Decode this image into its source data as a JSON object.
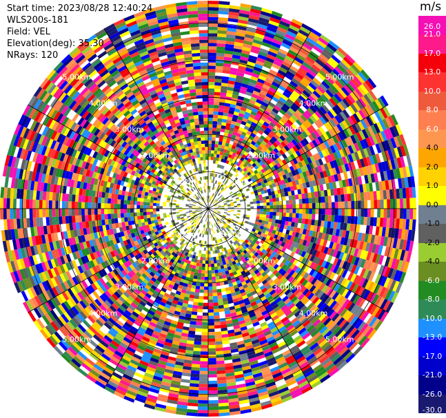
{
  "info": {
    "start_time": "Start time: 2023/08/28 12:40:24",
    "instrument": "WLS200s-181",
    "field": "Field: VEL",
    "elevation": "Elevation(deg): 35.30",
    "nrays": "NRays: 120"
  },
  "colorbar": {
    "unit": "m/s",
    "ticks": [
      "26.0",
      "21.0",
      "17.0",
      "13.0",
      "10.0",
      "8.0",
      "6.0",
      "4.0",
      "2.0",
      "1.0",
      "0.0",
      "-1.0",
      "-2.0",
      "-4.0",
      "-6.0",
      "-8.0",
      "-10.0",
      "-13.0",
      "-17.0",
      "-21.0",
      "-26.0",
      "-30.0"
    ],
    "colors": [
      "#f50fb4",
      "#ff1a8c",
      "#f5000a",
      "#ff3232",
      "#f05a3c",
      "#ff7f50",
      "#ff9650",
      "#ffa500",
      "#ffd200",
      "#ffff00",
      "#708090",
      "#606060",
      "#9acd32",
      "#6b8e23",
      "#228b22",
      "#2e8b57",
      "#1e90ff",
      "#0000ff",
      "#0000cd",
      "#00008b",
      "#191970"
    ]
  },
  "chart_data": {
    "type": "ppi",
    "field": "VEL",
    "units": "m/s",
    "n_rays": 120,
    "range_rings_km": [
      1.0,
      2.0,
      3.0,
      4.0,
      5.0
    ],
    "range_ring_labels": [
      "1.00km",
      "2.00km",
      "3.00km",
      "4.00km",
      "5.00km"
    ],
    "azimuth_spokes_deg": [
      0,
      30,
      60,
      90,
      120,
      150,
      180,
      210,
      240,
      270,
      300,
      330
    ],
    "observations": {
      "near_center": "low velocities (yellow/olive/gray, about -2 to 4 m/s)",
      "outer_rings": "noisy aliased velocities spanning the full -30 to 26 m/s scale"
    }
  }
}
